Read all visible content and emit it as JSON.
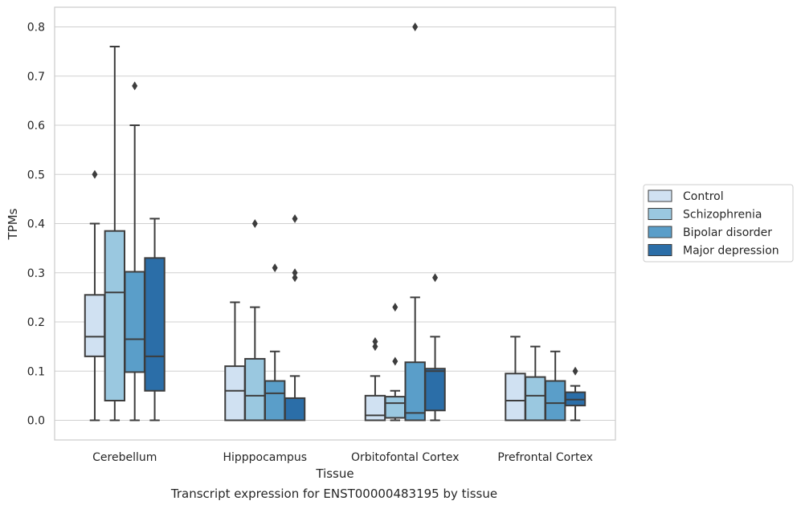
{
  "caption": "Transcript expression for ENST00000483195 by tissue",
  "chart_data": {
    "type": "boxplot",
    "xlabel": "Tissue",
    "ylabel": "TPMs",
    "ylim": [
      -0.04,
      0.84
    ],
    "yticks": [
      0.0,
      0.1,
      0.2,
      0.3,
      0.4,
      0.5,
      0.6,
      0.7,
      0.8
    ],
    "grid": true,
    "legend_position": "right",
    "categories": [
      "Cerebellum",
      "Hipppocampus",
      "Orbitofontal Cortex",
      "Prefrontal Cortex"
    ],
    "series": [
      {
        "name": "Control",
        "color": "#d0e1f2",
        "boxes": [
          {
            "whisker_low": 0.0,
            "q1": 0.13,
            "median": 0.17,
            "q3": 0.255,
            "whisker_high": 0.4,
            "outliers": [
              0.5
            ]
          },
          {
            "whisker_low": 0.0,
            "q1": 0.0,
            "median": 0.06,
            "q3": 0.11,
            "whisker_high": 0.24,
            "outliers": []
          },
          {
            "whisker_low": 0.0,
            "q1": 0.0,
            "median": 0.01,
            "q3": 0.05,
            "whisker_high": 0.09,
            "outliers": [
              0.15,
              0.16
            ]
          },
          {
            "whisker_low": 0.0,
            "q1": 0.0,
            "median": 0.04,
            "q3": 0.095,
            "whisker_high": 0.17,
            "outliers": []
          }
        ]
      },
      {
        "name": "Schizophrenia",
        "color": "#9ac8e0",
        "boxes": [
          {
            "whisker_low": 0.0,
            "q1": 0.04,
            "median": 0.26,
            "q3": 0.385,
            "whisker_high": 0.76,
            "outliers": []
          },
          {
            "whisker_low": 0.0,
            "q1": 0.0,
            "median": 0.05,
            "q3": 0.125,
            "whisker_high": 0.23,
            "outliers": [
              0.4
            ]
          },
          {
            "whisker_low": 0.0,
            "q1": 0.005,
            "median": 0.035,
            "q3": 0.048,
            "whisker_high": 0.06,
            "outliers": [
              0.12,
              0.23
            ]
          },
          {
            "whisker_low": 0.0,
            "q1": 0.0,
            "median": 0.05,
            "q3": 0.088,
            "whisker_high": 0.15,
            "outliers": []
          }
        ]
      },
      {
        "name": "Bipolar disorder",
        "color": "#5a9ec9",
        "boxes": [
          {
            "whisker_low": 0.0,
            "q1": 0.098,
            "median": 0.165,
            "q3": 0.302,
            "whisker_high": 0.6,
            "outliers": [
              0.68
            ]
          },
          {
            "whisker_low": 0.0,
            "q1": 0.0,
            "median": 0.055,
            "q3": 0.08,
            "whisker_high": 0.14,
            "outliers": [
              0.31
            ]
          },
          {
            "whisker_low": 0.0,
            "q1": 0.0,
            "median": 0.015,
            "q3": 0.118,
            "whisker_high": 0.25,
            "outliers": [
              0.8
            ]
          },
          {
            "whisker_low": 0.0,
            "q1": 0.0,
            "median": 0.035,
            "q3": 0.08,
            "whisker_high": 0.14,
            "outliers": []
          }
        ]
      },
      {
        "name": "Major depression",
        "color": "#2b6ea8",
        "boxes": [
          {
            "whisker_low": 0.0,
            "q1": 0.06,
            "median": 0.13,
            "q3": 0.33,
            "whisker_high": 0.41,
            "outliers": []
          },
          {
            "whisker_low": 0.0,
            "q1": 0.0,
            "median": 0.0,
            "q3": 0.045,
            "whisker_high": 0.09,
            "outliers": [
              0.29,
              0.3,
              0.41
            ]
          },
          {
            "whisker_low": 0.0,
            "q1": 0.02,
            "median": 0.1,
            "q3": 0.105,
            "whisker_high": 0.17,
            "outliers": [
              0.29
            ]
          },
          {
            "whisker_low": 0.0,
            "q1": 0.03,
            "median": 0.042,
            "q3": 0.057,
            "whisker_high": 0.07,
            "outliers": [
              0.1
            ]
          }
        ]
      }
    ]
  }
}
